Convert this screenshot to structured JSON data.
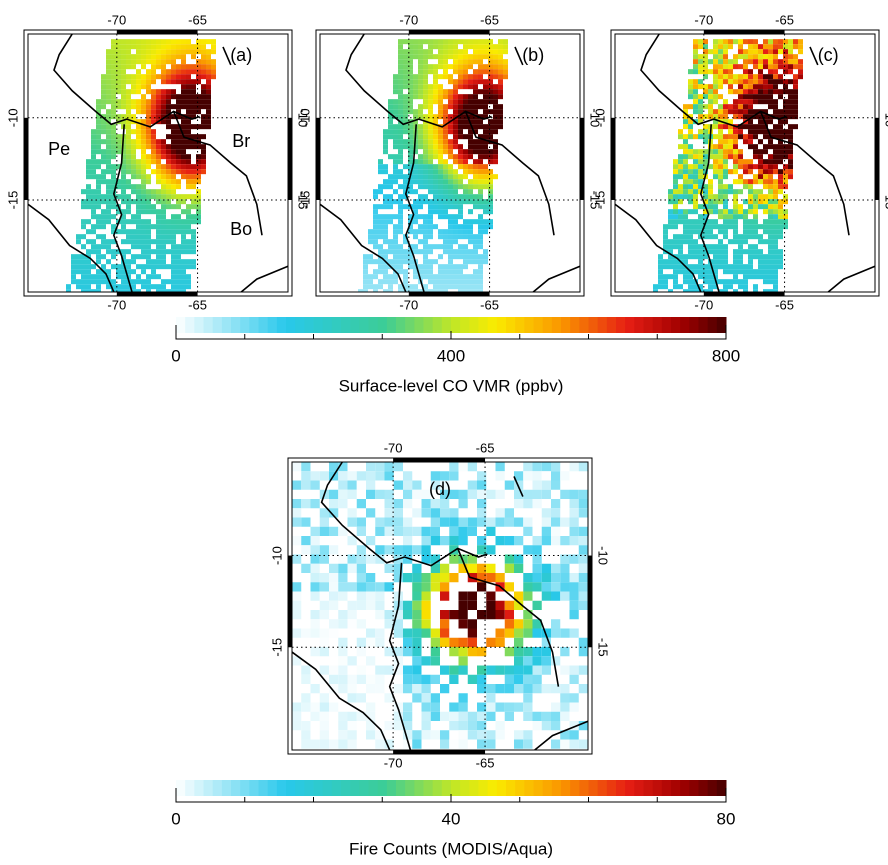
{
  "panels": [
    {
      "label": "(a)",
      "regions": [
        "Pe",
        "Br",
        "Bo"
      ],
      "lon_ticks": [
        -70,
        -65
      ],
      "lat_ticks": [
        -10,
        -15
      ]
    },
    {
      "label": "(b)",
      "lon_ticks": [
        -70,
        -65
      ],
      "lat_ticks": [
        -10,
        -15
      ]
    },
    {
      "label": "(c)",
      "lon_ticks": [
        -70,
        -65
      ],
      "lat_ticks": [
        -10,
        -15
      ]
    },
    {
      "label": "(d)",
      "lon_ticks": [
        -70,
        -65
      ],
      "lat_ticks": [
        -10,
        -15
      ]
    }
  ],
  "lonlim": [
    -75.5,
    -59.4
  ],
  "latlim": [
    -4.9,
    -20.6
  ],
  "colorbars": [
    {
      "label": "Surface-level CO VMR (ppbv)",
      "range": [
        0,
        800
      ],
      "ticks": [
        0,
        400,
        800
      ]
    },
    {
      "label": "Fire Counts (MODIS/Aqua)",
      "range": [
        0,
        80
      ],
      "ticks": [
        0,
        40,
        80
      ]
    }
  ]
}
